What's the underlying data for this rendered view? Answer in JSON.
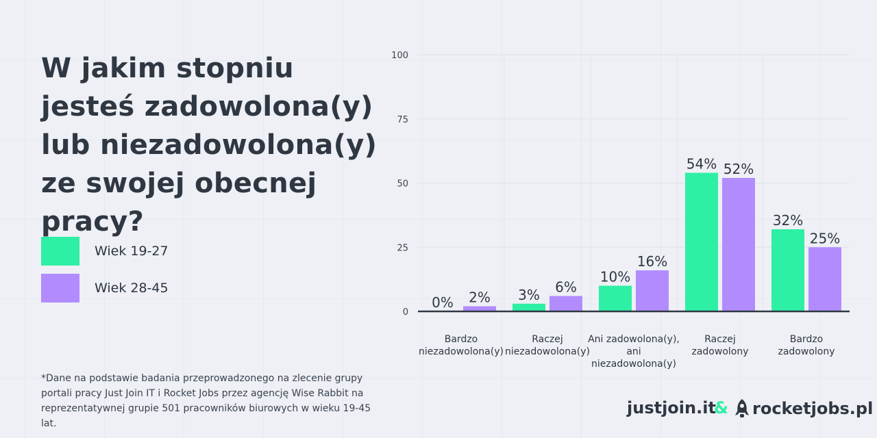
{
  "title": "W jakim stopniu jesteś zadowolona(y) lub niezadowolona(y) ze swojej obecnej pracy?",
  "legend": [
    {
      "label": "Wiek 19-27",
      "color": "#2ef0a4"
    },
    {
      "label": "Wiek 28-45",
      "color": "#b28cff"
    }
  ],
  "footnote": "*Dane na podstawie badania przeprowadzonego na zlecenie grupy portali pracy Just Join IT i Rocket Jobs przez agencję Wise Rabbit na reprezentatywnej grupie 501 pracowników biurowych w wieku 19-45 lat.",
  "brands": {
    "justjoin": "justjoin.it",
    "ampersand": "&",
    "rocketjobs": "rocketjobs.pl",
    "rocket_icon": "rocket-icon"
  },
  "chart_data": {
    "type": "bar",
    "categories": [
      [
        "Bardzo",
        "niezadowolona(y)"
      ],
      [
        "Raczej",
        "niezadowolona(y)"
      ],
      [
        "Ani zadowolona(y),",
        "ani",
        "niezadowolona(y)"
      ],
      [
        "Raczej",
        "zadowolony"
      ],
      [
        "Bardzo",
        "zadowolony"
      ]
    ],
    "series": [
      {
        "name": "Wiek 19-27",
        "color": "#2ef0a4",
        "values": [
          0,
          3,
          10,
          54,
          32
        ],
        "labels": [
          "0%",
          "3%",
          "10%",
          "54%",
          "32%"
        ]
      },
      {
        "name": "Wiek 28-45",
        "color": "#b28cff",
        "values": [
          2,
          6,
          16,
          52,
          25
        ],
        "labels": [
          "2%",
          "6%",
          "16%",
          "52%",
          "25%"
        ]
      }
    ],
    "ylim": [
      0,
      100
    ],
    "yticks": [
      0,
      25,
      50,
      75,
      100
    ],
    "grid": true
  }
}
